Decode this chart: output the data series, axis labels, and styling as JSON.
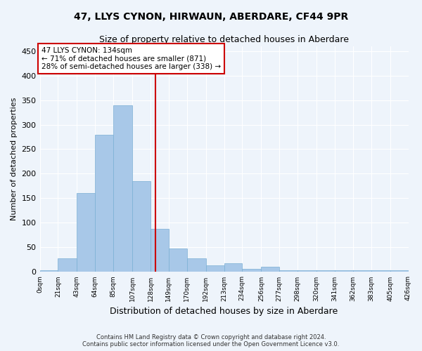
{
  "title": "47, LLYS CYNON, HIRWAUN, ABERDARE, CF44 9PR",
  "subtitle": "Size of property relative to detached houses in Aberdare",
  "xlabel": "Distribution of detached houses by size in Aberdare",
  "ylabel": "Number of detached properties",
  "footer_line1": "Contains HM Land Registry data © Crown copyright and database right 2024.",
  "footer_line2": "Contains public sector information licensed under the Open Government Licence v3.0.",
  "property_line": "47 LLYS CYNON: 134sqm",
  "annotation_line1": "← 71% of detached houses are smaller (871)",
  "annotation_line2": "28% of semi-detached houses are larger (338) →",
  "property_value": 134,
  "bar_left_edges": [
    0,
    21,
    43,
    64,
    85,
    107,
    128,
    149,
    170,
    192,
    213,
    234,
    256,
    277,
    298,
    320,
    341,
    362,
    383,
    405
  ],
  "bar_widths": [
    21,
    22,
    21,
    21,
    22,
    21,
    21,
    21,
    22,
    21,
    21,
    22,
    21,
    21,
    22,
    21,
    21,
    21,
    22,
    21
  ],
  "bar_heights": [
    3,
    28,
    160,
    280,
    340,
    185,
    88,
    48,
    28,
    13,
    18,
    6,
    10,
    3,
    3,
    3,
    3,
    3,
    3,
    3
  ],
  "tick_labels": [
    "0sqm",
    "21sqm",
    "43sqm",
    "64sqm",
    "85sqm",
    "107sqm",
    "128sqm",
    "149sqm",
    "170sqm",
    "192sqm",
    "213sqm",
    "234sqm",
    "256sqm",
    "277sqm",
    "298sqm",
    "320sqm",
    "341sqm",
    "362sqm",
    "383sqm",
    "405sqm",
    "426sqm"
  ],
  "bar_color": "#a8c8e8",
  "bar_edge_color": "#7aafd4",
  "line_color": "#cc0000",
  "bg_color": "#eef4fb",
  "grid_color": "#ffffff",
  "annotation_box_color": "#cc0000",
  "ylim": [
    0,
    460
  ],
  "yticks": [
    0,
    50,
    100,
    150,
    200,
    250,
    300,
    350,
    400,
    450
  ]
}
